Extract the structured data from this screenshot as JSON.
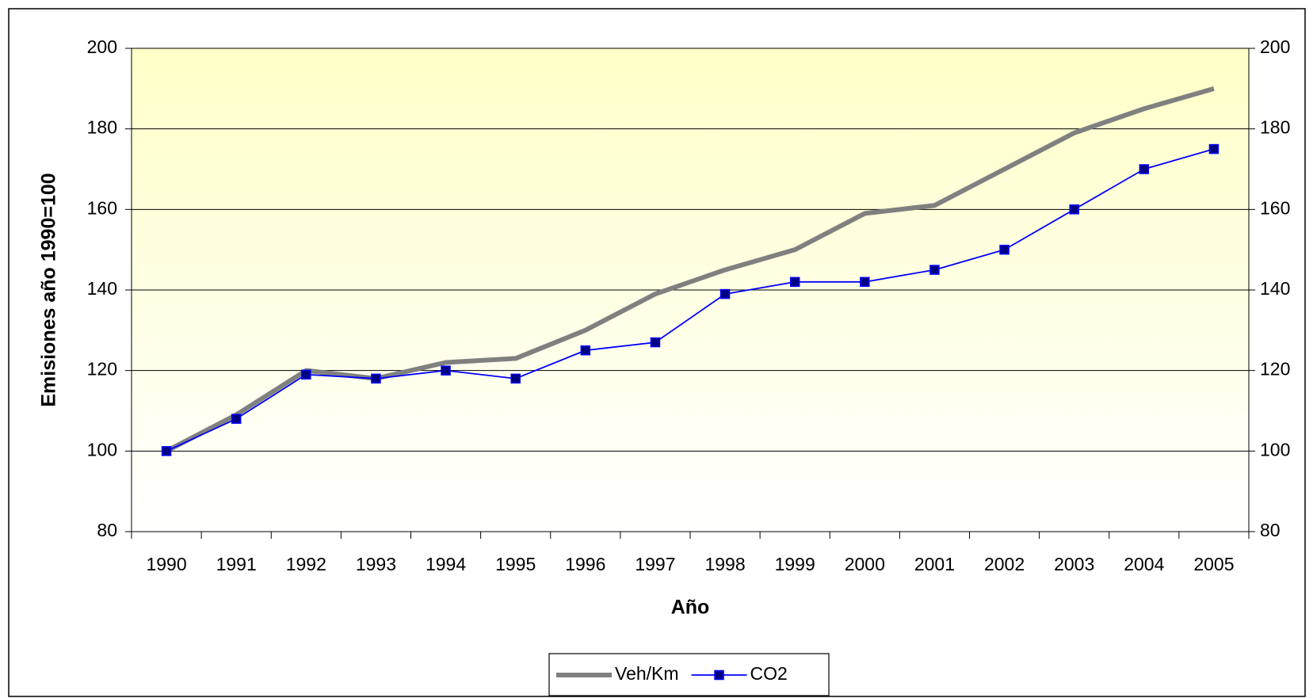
{
  "chart_data": {
    "type": "line",
    "x_label": "Año",
    "y_label": "Emisiones año 1990=100",
    "categories": [
      "1990",
      "1991",
      "1992",
      "1993",
      "1994",
      "1995",
      "1996",
      "1997",
      "1998",
      "1999",
      "2000",
      "2001",
      "2002",
      "2003",
      "2004",
      "2005"
    ],
    "series": [
      {
        "name": "Veh/Km",
        "color": "#808080",
        "values": [
          100,
          109,
          120,
          118,
          122,
          123,
          130,
          139,
          145,
          150,
          159,
          161,
          170,
          179,
          185,
          190
        ]
      },
      {
        "name": "CO2",
        "color": "#0000ff",
        "marker_color": "#000080",
        "values": [
          100,
          108,
          119,
          118,
          120,
          118,
          125,
          127,
          139,
          142,
          142,
          145,
          150,
          160,
          170,
          175
        ]
      }
    ],
    "ylim": [
      80,
      200
    ],
    "yticks": [
      80,
      100,
      120,
      140,
      160,
      180,
      200
    ],
    "y2lim": [
      80,
      200
    ],
    "y2ticks": [
      80,
      100,
      120,
      140,
      160,
      180,
      200
    ],
    "grid": true,
    "legend": "bottom"
  }
}
